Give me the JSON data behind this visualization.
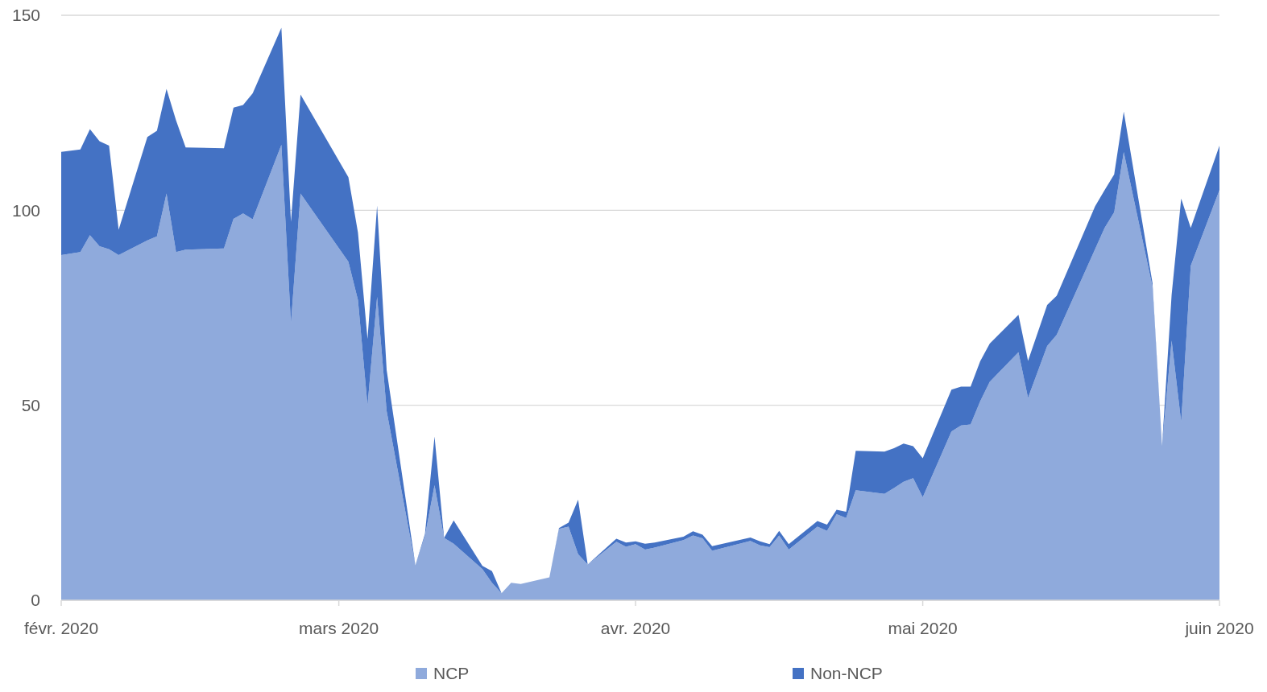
{
  "chart_data": {
    "type": "area",
    "stacked": true,
    "x": [
      "2020-02-01",
      "2020-02-03",
      "2020-02-04",
      "2020-02-05",
      "2020-02-06",
      "2020-02-07",
      "2020-02-10",
      "2020-02-11",
      "2020-02-12",
      "2020-02-13",
      "2020-02-14",
      "2020-02-18",
      "2020-02-19",
      "2020-02-20",
      "2020-02-21",
      "2020-02-24",
      "2020-02-25",
      "2020-02-26",
      "2020-03-02",
      "2020-03-03",
      "2020-03-04",
      "2020-03-05",
      "2020-03-06",
      "2020-03-09",
      "2020-03-10",
      "2020-03-11",
      "2020-03-12",
      "2020-03-13",
      "2020-03-16",
      "2020-03-17",
      "2020-03-18",
      "2020-03-19",
      "2020-03-20",
      "2020-03-23",
      "2020-03-24",
      "2020-03-25",
      "2020-03-26",
      "2020-03-27",
      "2020-03-30",
      "2020-03-31",
      "2020-04-01",
      "2020-04-02",
      "2020-04-03",
      "2020-04-06",
      "2020-04-07",
      "2020-04-08",
      "2020-04-09",
      "2020-04-13",
      "2020-04-14",
      "2020-04-15",
      "2020-04-16",
      "2020-04-17",
      "2020-04-20",
      "2020-04-21",
      "2020-04-22",
      "2020-04-23",
      "2020-04-24",
      "2020-04-27",
      "2020-04-28",
      "2020-04-29",
      "2020-04-30",
      "2020-05-01",
      "2020-05-04",
      "2020-05-05",
      "2020-05-06",
      "2020-05-07",
      "2020-05-08",
      "2020-05-11",
      "2020-05-12",
      "2020-05-14",
      "2020-05-15",
      "2020-05-19",
      "2020-05-20",
      "2020-05-21",
      "2020-05-22",
      "2020-05-25",
      "2020-05-26",
      "2020-05-27",
      "2020-05-28",
      "2020-05-29",
      "2020-06-01"
    ],
    "series": [
      {
        "name": "NCP",
        "color": "#8faadc",
        "values": [
          88.5,
          89.3,
          93.6,
          90.8,
          90.0,
          88.5,
          92.3,
          93.3,
          104.3,
          89.3,
          89.9,
          90.2,
          97.8,
          99.2,
          97.7,
          116.8,
          71.0,
          104.3,
          86.8,
          77.0,
          50.0,
          77.8,
          48.5,
          9.0,
          16.5,
          29.5,
          16.0,
          14.5,
          8.0,
          4.5,
          1.8,
          4.5,
          4.2,
          5.9,
          18.3,
          18.9,
          11.8,
          9.2,
          15.0,
          13.7,
          14.4,
          13.0,
          13.5,
          15.4,
          16.6,
          15.9,
          12.7,
          15.2,
          14.1,
          13.6,
          16.6,
          13.0,
          18.9,
          17.8,
          22.1,
          21.1,
          28.2,
          27.3,
          28.8,
          30.4,
          31.3,
          26.4,
          43.3,
          44.8,
          45.1,
          51.0,
          56.0,
          63.6,
          51.9,
          65.2,
          68.1,
          90.0,
          95.5,
          99.5,
          114.9,
          80.4,
          39.6,
          66.6,
          45.7,
          85.8,
          105.2
        ]
      },
      {
        "name": "Non-NCP",
        "color": "#4472c4",
        "values": [
          26.5,
          26.3,
          27.2,
          26.9,
          26.6,
          6.5,
          26.5,
          27.1,
          26.8,
          33.7,
          26.2,
          25.7,
          28.5,
          27.8,
          32.3,
          30.0,
          26.0,
          25.4,
          21.7,
          17.3,
          17.0,
          23.4,
          10.5,
          0,
          0.5,
          12.5,
          0,
          6.0,
          0.8,
          3.0,
          0,
          0,
          0,
          0,
          0.2,
          1.0,
          14.0,
          0,
          0.8,
          1.1,
          0.7,
          1.5,
          1.3,
          0.9,
          1.1,
          0.9,
          1.2,
          0.9,
          1.0,
          0.8,
          1.2,
          1.4,
          1.4,
          1.6,
          1.1,
          1.6,
          10.1,
          10.8,
          10.2,
          9.8,
          8.2,
          10.0,
          10.7,
          10.0,
          9.7,
          10.3,
          9.8,
          9.6,
          9.5,
          10.5,
          10.0,
          11.0,
          9.7,
          9.7,
          10.4,
          1.0,
          0,
          11.7,
          57.3,
          9.7,
          11.4
        ]
      }
    ],
    "xlim": [
      "2020-02-01",
      "2020-06-01"
    ],
    "xticks": [
      {
        "value": "2020-02-01",
        "label": "févr. 2020"
      },
      {
        "value": "2020-03-01",
        "label": "mars 2020"
      },
      {
        "value": "2020-04-01",
        "label": "avr. 2020"
      },
      {
        "value": "2020-05-01",
        "label": "mai 2020"
      },
      {
        "value": "2020-06-01",
        "label": "juin 2020"
      }
    ],
    "ylim": [
      0,
      150
    ],
    "yticks": [
      0,
      50,
      100,
      150
    ],
    "grid": "y",
    "legend": "bottom"
  }
}
